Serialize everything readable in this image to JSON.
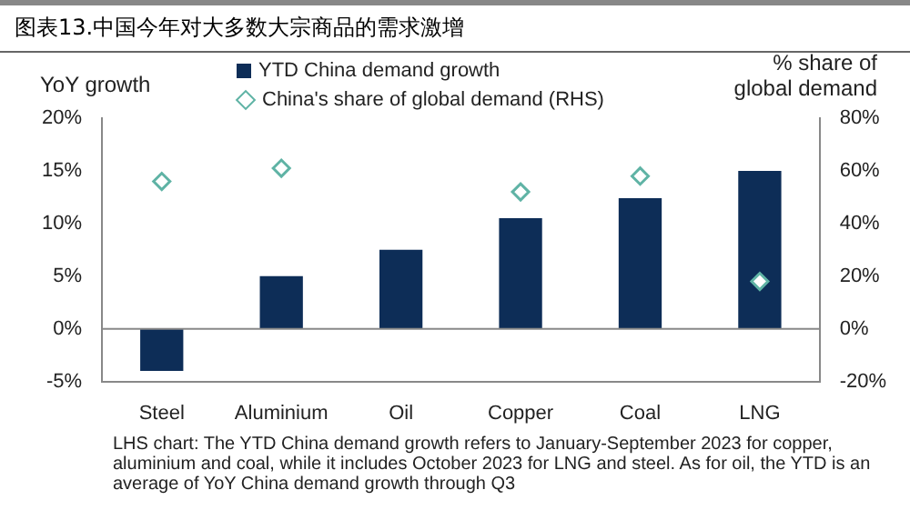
{
  "chart_data": {
    "type": "bar",
    "title": "图表13.中国今年对大多数大宗商品的需求激增",
    "ylabel": "YoY growth",
    "y2label": "% share of global demand",
    "categories": [
      "Steel",
      "Aluminium",
      "Oil",
      "Copper",
      "Coal",
      "LNG"
    ],
    "series": [
      {
        "name": "YTD China demand growth",
        "color": "#0d2d57",
        "values": [
          -4,
          5,
          7.5,
          10.5,
          12.4,
          15
        ]
      },
      {
        "name": "China's share of global demand (RHS)",
        "type": "scatter",
        "axis": "y2",
        "color": "#5fb3a5",
        "values": [
          56,
          61,
          null,
          52,
          58,
          18
        ]
      }
    ],
    "ylim": [
      -5,
      20
    ],
    "yticks": [
      {
        "value": -5,
        "label": "-5%"
      },
      {
        "value": 0,
        "label": "0%"
      },
      {
        "value": 5,
        "label": "5%"
      },
      {
        "value": 10,
        "label": "10%"
      },
      {
        "value": 15,
        "label": "15%"
      },
      {
        "value": 20,
        "label": "20%"
      }
    ],
    "y2lim": [
      -20,
      80
    ],
    "y2ticks": [
      {
        "value": -20,
        "label": "-20%"
      },
      {
        "value": 0,
        "label": "0%"
      },
      {
        "value": 20,
        "label": "20%"
      },
      {
        "value": 40,
        "label": "40%"
      },
      {
        "value": 60,
        "label": "60%"
      },
      {
        "value": 80,
        "label": "80%"
      }
    ],
    "ref_lines": [
      {
        "axis": "y",
        "value": 0,
        "color": "#888888"
      }
    ],
    "grid": false,
    "legend": "top",
    "marker": "diamond",
    "annotations": [
      "LHS chart: The YTD China demand growth refers to January-September 2023 for copper, aluminium and coal, while it includes October 2023 for LNG and steel. As for oil, the YTD is an average of YoY China demand growth through Q3"
    ]
  }
}
